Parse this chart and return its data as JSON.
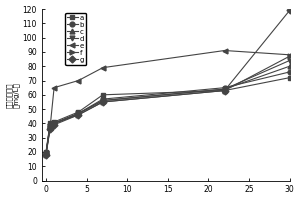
{
  "x": [
    0,
    0.5,
    1,
    4,
    7,
    22,
    30
  ],
  "series": {
    "a": [
      20,
      40,
      41,
      48,
      60,
      63,
      72
    ],
    "b": [
      19,
      39,
      40,
      47,
      57,
      65,
      76
    ],
    "c": [
      19,
      39,
      40,
      47,
      56,
      64,
      80
    ],
    "d": [
      19,
      38,
      40,
      47,
      56,
      64,
      84
    ],
    "e": [
      19,
      37,
      65,
      70,
      79,
      91,
      88
    ],
    "f": [
      18,
      37,
      40,
      46,
      55,
      63,
      87
    ],
    "g": [
      18,
      36,
      39,
      46,
      55,
      63,
      119
    ]
  },
  "markers": {
    "a": "s",
    "b": "o",
    "c": "^",
    "d": "v",
    "e": "<",
    "f": ">",
    "g": "D"
  },
  "ylabel_chars": [
    "溶",
    "解",
    "性",
    "總",
    "固",
    "體",
    "（",
    "m",
    "g",
    "/",
    "L",
    "）"
  ],
  "xlim": [
    -0.5,
    30
  ],
  "ylim": [
    0,
    120
  ],
  "yticks": [
    0,
    10,
    20,
    30,
    40,
    50,
    60,
    70,
    80,
    90,
    100,
    110,
    120
  ],
  "xticks": [
    0,
    5,
    10,
    15,
    20,
    25,
    30
  ],
  "color": "#444444",
  "linewidth": 0.8,
  "markersize": 3.5
}
